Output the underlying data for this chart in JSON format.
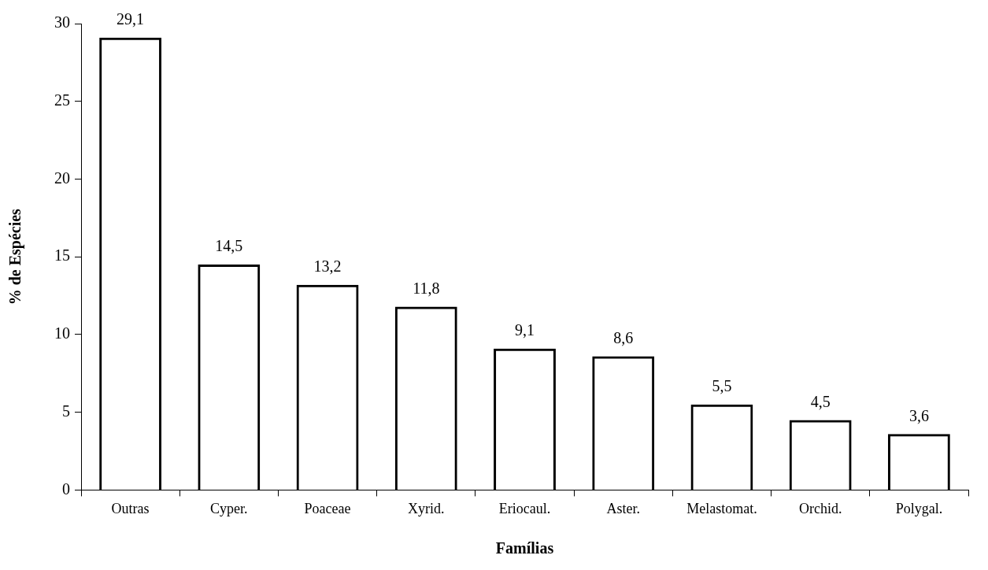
{
  "chart_data": {
    "type": "bar",
    "xlabel": "Famílias",
    "ylabel": "% de Espécies",
    "categories": [
      "Outras",
      "Cyper.",
      "Poaceae",
      "Xyrid.",
      "Eriocaul.",
      "Aster.",
      "Melastomat.",
      "Orchid.",
      "Polygal."
    ],
    "values": [
      29.1,
      14.5,
      13.2,
      11.8,
      9.1,
      8.6,
      5.5,
      4.5,
      3.6
    ],
    "value_labels": [
      "29,1",
      "14,5",
      "13,2",
      "11,8",
      "9,1",
      "8,6",
      "5,5",
      "4,5",
      "3,6"
    ],
    "color": "#000000",
    "ylim": [
      0,
      30
    ],
    "yticks": [
      0,
      5,
      10,
      15,
      20,
      25,
      30
    ],
    "grid": false,
    "legend": false
  }
}
